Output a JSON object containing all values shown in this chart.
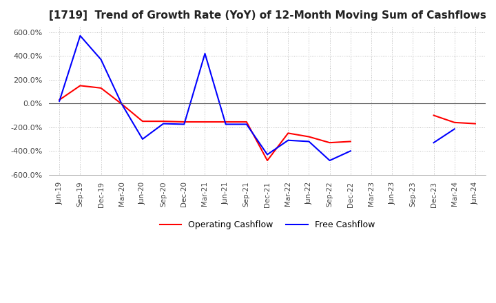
{
  "title": "[1719]  Trend of Growth Rate (YoY) of 12-Month Moving Sum of Cashflows",
  "title_fontsize": 11,
  "ylim": [
    -600,
    650
  ],
  "yticks": [
    -600,
    -400,
    -200,
    0,
    200,
    400,
    600
  ],
  "legend_labels": [
    "Operating Cashflow",
    "Free Cashflow"
  ],
  "legend_colors": [
    "#ff0000",
    "#0000ff"
  ],
  "grid_color": "#bbbbbb",
  "bg_color": "#ffffff",
  "x_labels": [
    "Jun-19",
    "Sep-19",
    "Dec-19",
    "Mar-20",
    "Jun-20",
    "Sep-20",
    "Dec-20",
    "Mar-21",
    "Jun-21",
    "Sep-21",
    "Dec-21",
    "Mar-22",
    "Jun-22",
    "Sep-22",
    "Dec-22",
    "Mar-23",
    "Jun-23",
    "Sep-23",
    "Dec-23",
    "Mar-24",
    "Jun-24"
  ],
  "operating_cashflow": [
    30,
    150,
    130,
    -5,
    -150,
    -150,
    -155,
    -155,
    -155,
    -155,
    -480,
    -250,
    -280,
    -330,
    -320,
    null,
    null,
    null,
    -100,
    -160,
    -170
  ],
  "free_cashflow": [
    20,
    570,
    370,
    -5,
    -300,
    -170,
    -175,
    420,
    -175,
    -175,
    -430,
    -310,
    -320,
    -480,
    -400,
    null,
    null,
    null,
    -330,
    -215,
    null
  ]
}
